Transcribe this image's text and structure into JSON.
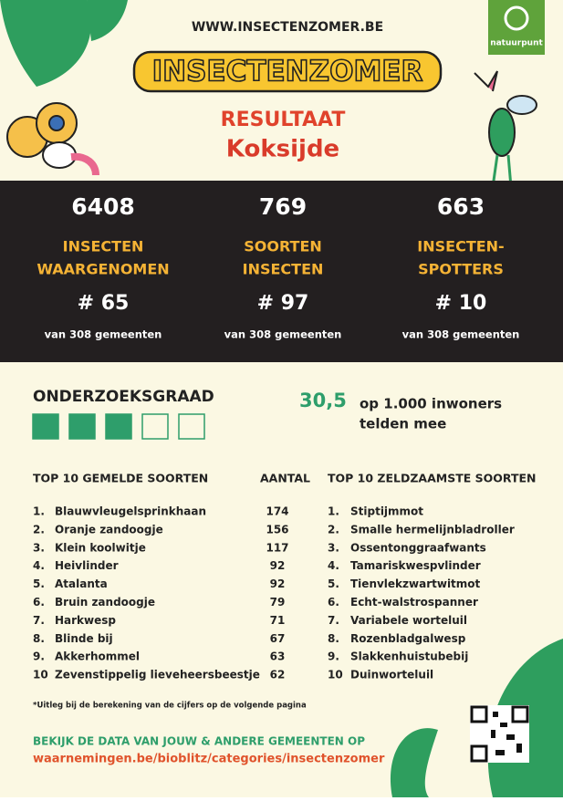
{
  "header": {
    "url": "WWW.INSECTENZOMER.BE",
    "logo": "INSECTENZOMER",
    "partner": "natuurpunt",
    "title": "RESULTAAT",
    "municipality": "Koksijde"
  },
  "stats": [
    {
      "value": "6408",
      "label": [
        "INSECTEN",
        "WAARGENOMEN"
      ],
      "rank": "# 65",
      "note": "van 308 gemeenten"
    },
    {
      "value": "769",
      "label": [
        "SOORTEN",
        "INSECTEN"
      ],
      "rank": "# 97",
      "note": "van 308 gemeenten"
    },
    {
      "value": "663",
      "label": [
        "INSECTEN-",
        "SPOTTERS"
      ],
      "rank": "# 10",
      "note": "van 308 gemeenten"
    }
  ],
  "research": {
    "title": "ONDERZOEKSGRAAD",
    "level": 3,
    "max": 5,
    "score": "30,5",
    "unit": [
      "op 1.000 inwoners",
      "telden mee"
    ]
  },
  "common": {
    "title": "TOP 10 GEMELDE SOORTEN",
    "count_header": "AANTAL",
    "rows": [
      [
        "1.",
        "Blauwvleugelsprinkhaan",
        "174"
      ],
      [
        "2.",
        "Oranje zandoogje",
        "156"
      ],
      [
        "3.",
        "Klein koolwitje",
        "117"
      ],
      [
        "4.",
        "Heivlinder",
        "92"
      ],
      [
        "5.",
        "Atalanta",
        "92"
      ],
      [
        "6.",
        "Bruin zandoogje",
        "79"
      ],
      [
        "7.",
        "Harkwesp",
        "71"
      ],
      [
        "8.",
        "Blinde bij",
        "67"
      ],
      [
        "9.",
        "Akkerhommel",
        "63"
      ],
      [
        "10",
        "Zevenstippelig lieveheersbeestje",
        "62"
      ]
    ]
  },
  "rare": {
    "title": "TOP 10 ZELDZAAMSTE SOORTEN",
    "rows": [
      [
        "1.",
        "Stiptijmmot"
      ],
      [
        "2.",
        "Smalle hermelijnbladroller"
      ],
      [
        "3.",
        "Ossentonggraafwants"
      ],
      [
        "4.",
        "Tamariskwespvlinder"
      ],
      [
        "5.",
        "Tienvlekzwartwitmot"
      ],
      [
        "6.",
        "Echt-walstrospanner"
      ],
      [
        "7.",
        "Variabele worteluil"
      ],
      [
        "8.",
        "Rozenbladgalwesp"
      ],
      [
        "9.",
        "Slakkenhuistubebij"
      ],
      [
        "10",
        "Duinworteluil"
      ]
    ]
  },
  "footer": {
    "note": "*Uitleg bij de berekening van de cijfers op de volgende pagina",
    "cta": "BEKIJK DE DATA VAN JOUW & ANDERE GEMEENTEN OP",
    "link": "waarnemingen.be/bioblitz/categories/insectenzomer"
  }
}
